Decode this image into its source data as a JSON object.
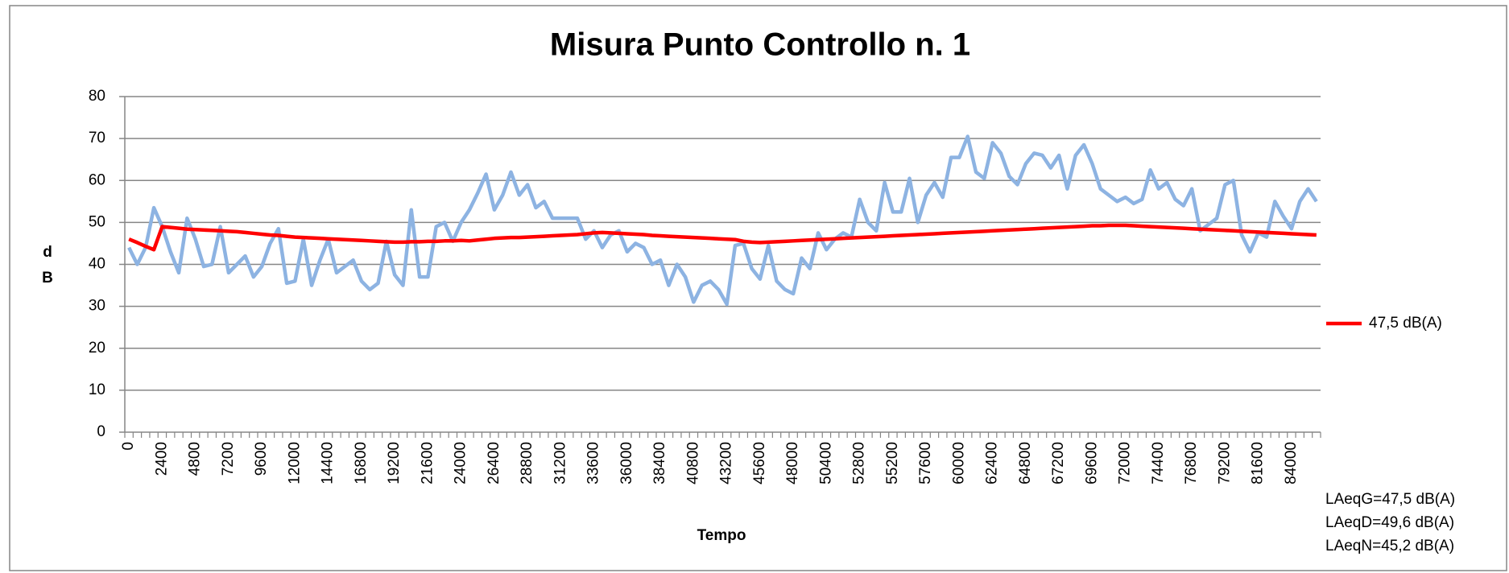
{
  "chart_data": {
    "type": "line",
    "title": "Misura Punto Controllo n. 1",
    "x_label": "Tempo",
    "y_label": "dB",
    "categories": [
      0,
      null,
      null,
      null,
      2400,
      null,
      null,
      null,
      4800,
      null,
      null,
      null,
      7200,
      null,
      null,
      null,
      9600,
      null,
      null,
      null,
      12000,
      null,
      null,
      null,
      14400,
      null,
      null,
      null,
      16800,
      null,
      null,
      null,
      19200,
      null,
      null,
      null,
      21600,
      null,
      null,
      null,
      24000,
      null,
      null,
      null,
      26400,
      null,
      null,
      null,
      28800,
      null,
      null,
      null,
      31200,
      null,
      null,
      null,
      33600,
      null,
      null,
      null,
      36000,
      null,
      null,
      null,
      38400,
      null,
      null,
      null,
      40800,
      null,
      null,
      null,
      43200,
      null,
      null,
      null,
      45600,
      null,
      null,
      null,
      48000,
      null,
      null,
      null,
      50400,
      null,
      null,
      null,
      52800,
      null,
      null,
      null,
      55200,
      null,
      null,
      null,
      57600,
      null,
      null,
      null,
      60000,
      null,
      null,
      null,
      62400,
      null,
      null,
      null,
      64800,
      null,
      null,
      null,
      67200,
      null,
      null,
      null,
      69600,
      null,
      null,
      null,
      72000,
      null,
      null,
      null,
      74400,
      null,
      null,
      null,
      76800,
      null,
      null,
      null,
      79200,
      null,
      null,
      null,
      81600,
      null,
      null,
      null,
      84000,
      null,
      null,
      null
    ],
    "series": [
      {
        "color": "#8db3e2",
        "values": [
          44,
          40,
          44,
          53.5,
          49,
          43,
          38,
          51,
          46,
          39.5,
          40,
          49,
          38,
          40,
          42,
          37,
          39.5,
          45,
          48.5,
          35.5,
          36,
          46,
          35,
          41,
          46,
          38,
          39.5,
          41,
          36,
          34,
          35.5,
          45.5,
          37.5,
          35,
          53,
          37,
          37,
          49,
          50,
          45.5,
          50,
          53,
          57,
          61.5,
          53,
          56.5,
          62,
          56.5,
          59,
          53.5,
          55,
          51,
          51,
          51,
          51,
          46,
          48,
          44,
          47,
          48,
          43,
          45,
          44,
          40,
          41,
          35,
          40,
          37,
          31,
          35,
          36,
          34,
          30.5,
          44.5,
          45,
          39,
          36.5,
          44.5,
          36,
          34,
          33,
          41.5,
          39,
          47.5,
          43.5,
          46,
          47.5,
          46.5,
          55.5,
          50,
          48,
          59.5,
          52.5,
          52.5,
          60.5,
          50,
          56.5,
          59.5,
          56,
          65.5,
          65.5,
          70.5,
          62,
          60.5,
          69,
          66.5,
          61,
          59,
          64,
          66.5,
          66,
          63,
          66,
          58,
          66,
          68.5,
          64,
          58,
          56.5,
          55,
          56,
          54.5,
          55.5,
          62.5,
          58,
          59.5,
          55.5,
          54,
          58,
          48,
          49.5,
          51,
          59,
          60,
          47,
          43,
          47.5,
          46.5,
          55,
          51.5,
          48.5,
          55,
          58,
          55
        ]
      },
      {
        "name": "47,5 dB(A)",
        "color": "#ff0000",
        "values": [
          46,
          45.2,
          44.3,
          43.5,
          49,
          48.8,
          48.6,
          48.4,
          48.3,
          48.2,
          48.1,
          48,
          47.9,
          47.8,
          47.6,
          47.4,
          47.2,
          47,
          46.9,
          46.7,
          46.5,
          46.4,
          46.3,
          46.2,
          46.1,
          46,
          45.9,
          45.8,
          45.7,
          45.6,
          45.5,
          45.4,
          45.3,
          45.3,
          45.4,
          45.4,
          45.5,
          45.5,
          45.6,
          45.6,
          45.7,
          45.6,
          45.8,
          46,
          46.2,
          46.3,
          46.4,
          46.4,
          46.5,
          46.6,
          46.7,
          46.8,
          46.9,
          47,
          47.1,
          47.3,
          47.5,
          47.6,
          47.5,
          47.4,
          47.3,
          47.2,
          47.1,
          46.9,
          46.8,
          46.7,
          46.6,
          46.5,
          46.4,
          46.3,
          46.2,
          46.1,
          46,
          45.9,
          45.5,
          45.3,
          45.2,
          45.3,
          45.4,
          45.5,
          45.6,
          45.7,
          45.8,
          45.9,
          46,
          46.1,
          46.2,
          46.3,
          46.4,
          46.5,
          46.6,
          46.7,
          46.8,
          46.9,
          47,
          47.1,
          47.2,
          47.3,
          47.4,
          47.5,
          47.6,
          47.7,
          47.8,
          47.9,
          48,
          48.1,
          48.2,
          48.3,
          48.4,
          48.5,
          48.6,
          48.7,
          48.8,
          48.9,
          49,
          49.1,
          49.2,
          49.2,
          49.3,
          49.3,
          49.3,
          49.2,
          49.1,
          49,
          48.9,
          48.8,
          48.7,
          48.6,
          48.5,
          48.4,
          48.3,
          48.2,
          48.1,
          48,
          47.9,
          47.8,
          47.7,
          47.6,
          47.5,
          47.4,
          47.3,
          47.2,
          47.1,
          47
        ]
      }
    ],
    "ylim": [
      0,
      80
    ],
    "yticks": [
      0,
      10,
      20,
      30,
      40,
      50,
      60,
      70,
      80
    ],
    "grid": true,
    "legend": "right",
    "annotations": [
      {
        "text": "LAeqG=47,5 dB(A)",
        "color": "#ff0000"
      },
      {
        "text": "LAeqD=49,6 dB(A)",
        "color": "#92d050"
      },
      {
        "text": "LAeqN=45,2 dB(A)",
        "color": "#92d050"
      }
    ]
  }
}
